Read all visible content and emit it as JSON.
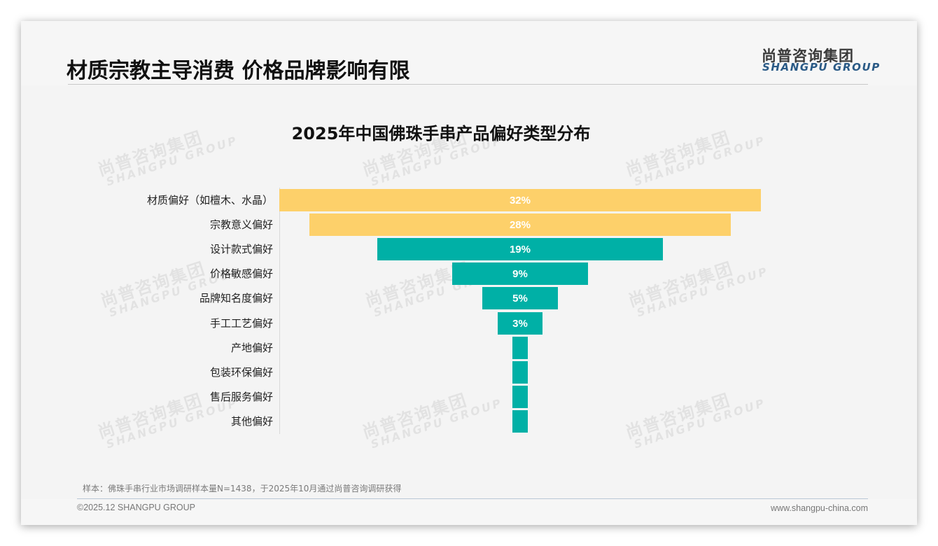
{
  "header": {
    "title": "材质宗教主导消费 价格品牌影响有限",
    "logo": {
      "cn": "尚普咨询集团",
      "en": "SHANGPU GROUP",
      "en_color": "#2a5a86"
    }
  },
  "watermark": {
    "cn": "尚普咨询集团",
    "en": "SHANGPU GROUP"
  },
  "chart_data": {
    "type": "bar",
    "subtype": "funnel (centered horizontal bars)",
    "title": "2025年中国佛珠手串产品偏好类型分布",
    "xlabel": "",
    "ylabel": "",
    "grid": false,
    "legend": null,
    "categories": [
      "材质偏好（如檀木、水晶）",
      "宗教意义偏好",
      "设计款式偏好",
      "价格敏感偏好",
      "品牌知名度偏好",
      "手工工艺偏好",
      "产地偏好",
      "包装环保偏好",
      "售后服务偏好",
      "其他偏好"
    ],
    "values": [
      32,
      28,
      19,
      9,
      5,
      3,
      1,
      1,
      1,
      1
    ],
    "value_labels": [
      "32%",
      "28%",
      "19%",
      "9%",
      "5%",
      "3%",
      "",
      "",
      "",
      ""
    ],
    "colors": [
      "#fdd06a",
      "#fdd06a",
      "#00b0a6",
      "#00b0a6",
      "#00b0a6",
      "#00b0a6",
      "#00b0a6",
      "#00b0a6",
      "#00b0a6",
      "#00b0a6"
    ],
    "unit": "%"
  },
  "footer": {
    "note": "样本：佛珠手串行业市场调研样本量N=1438，于2025年10月通过尚普咨询调研获得",
    "copyright": "©2025.12 SHANGPU GROUP",
    "website": "www.shangpu-china.com"
  }
}
